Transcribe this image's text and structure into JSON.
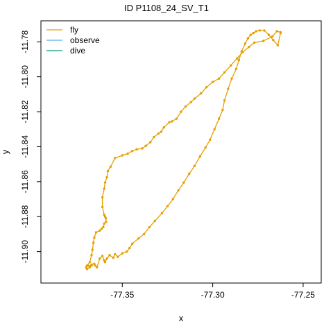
{
  "chart_data": {
    "type": "line",
    "title": "ID P1108_24_SV_T1",
    "xlabel": "x",
    "ylabel": "y",
    "xlim": [
      -77.395,
      -77.24
    ],
    "ylim": [
      -11.918,
      -11.768
    ],
    "xticks": [
      -77.35,
      -77.3,
      -77.25
    ],
    "xtick_labels": [
      "-77.35",
      "-77.30",
      "-77.25"
    ],
    "yticks": [
      -11.78,
      -11.8,
      -11.82,
      -11.84,
      -11.86,
      -11.88,
      -11.9
    ],
    "ytick_labels": [
      "-11.78",
      "-11.80",
      "-11.82",
      "-11.84",
      "-11.86",
      "-11.88",
      "-11.90"
    ],
    "legend_position": "top-left",
    "series": [
      {
        "name": "fly",
        "color": "#E69F00",
        "x": [
          -77.2625,
          -77.2645,
          -77.267,
          -77.272,
          -77.277,
          -77.28,
          -77.2835,
          -77.2865,
          -77.29,
          -77.2935,
          -77.2965,
          -77.3,
          -77.3035,
          -77.3065,
          -77.31,
          -77.312,
          -77.315,
          -77.3175,
          -77.32,
          -77.3225,
          -77.324,
          -77.327,
          -77.3285,
          -77.33,
          -77.3325,
          -77.3345,
          -77.337,
          -77.339,
          -77.342,
          -77.3445,
          -77.347,
          -77.35,
          -77.354,
          -77.3565,
          -77.358,
          -77.3585,
          -77.3595,
          -77.36,
          -77.361,
          -77.361,
          -77.36,
          -77.3595,
          -77.359,
          -77.359,
          -77.36,
          -77.3605,
          -77.3615,
          -77.3625,
          -77.3645,
          -77.3655,
          -77.366,
          -77.3665,
          -77.367,
          -77.368,
          -77.3695,
          -77.37,
          -77.3695,
          -77.368,
          -77.367,
          -77.369,
          -77.368,
          -77.367,
          -77.3655,
          -77.365,
          -77.364,
          -77.3625,
          -77.361,
          -77.36,
          -77.3595,
          -77.3585,
          -77.357,
          -77.355,
          -77.354,
          -77.3525,
          -77.35,
          -77.3475,
          -77.346,
          -77.3445,
          -77.341,
          -77.338,
          -77.335,
          -77.332,
          -77.328,
          -77.325,
          -77.322,
          -77.319,
          -77.316,
          -77.313,
          -77.31,
          -77.307,
          -77.304,
          -77.3015,
          -77.299,
          -77.2965,
          -77.2945,
          -77.2935,
          -77.2915,
          -77.2895,
          -77.287,
          -77.2855,
          -77.284,
          -77.282,
          -77.2805,
          -77.279,
          -77.2775,
          -77.276,
          -77.274,
          -77.2715,
          -77.269,
          -77.2665,
          -77.264,
          -77.2625
        ],
        "y": [
          -11.7745,
          -11.774,
          -11.777,
          -11.7795,
          -11.7805,
          -11.783,
          -11.786,
          -11.7895,
          -11.7935,
          -11.7975,
          -11.801,
          -11.803,
          -11.806,
          -11.8095,
          -11.8125,
          -11.8145,
          -11.817,
          -11.82,
          -11.824,
          -11.8255,
          -11.826,
          -11.829,
          -11.8315,
          -11.8325,
          -11.8345,
          -11.8375,
          -11.8395,
          -11.841,
          -11.8415,
          -11.8425,
          -11.844,
          -11.845,
          -11.8465,
          -11.8515,
          -11.854,
          -11.8575,
          -11.8605,
          -11.864,
          -11.869,
          -11.8745,
          -11.879,
          -11.88,
          -11.881,
          -11.883,
          -11.884,
          -11.886,
          -11.887,
          -11.888,
          -11.889,
          -11.892,
          -11.895,
          -11.899,
          -11.902,
          -11.906,
          -11.908,
          -11.909,
          -11.91,
          -11.909,
          -11.908,
          -11.908,
          -11.9085,
          -11.9075,
          -11.907,
          -11.908,
          -11.909,
          -11.904,
          -11.9025,
          -11.905,
          -11.906,
          -11.904,
          -11.902,
          -11.9035,
          -11.9015,
          -11.903,
          -11.901,
          -11.9,
          -11.898,
          -11.8955,
          -11.8925,
          -11.89,
          -11.886,
          -11.8825,
          -11.878,
          -11.874,
          -11.87,
          -11.865,
          -11.8605,
          -11.8555,
          -11.851,
          -11.8455,
          -11.8405,
          -11.836,
          -11.83,
          -11.824,
          -11.819,
          -11.8135,
          -11.807,
          -11.801,
          -11.7955,
          -11.7905,
          -11.7855,
          -11.781,
          -11.778,
          -11.776,
          -11.775,
          -11.774,
          -11.7735,
          -11.7735,
          -11.776,
          -11.779,
          -11.782,
          -11.775
        ]
      },
      {
        "name": "observe",
        "color": "#56B4E9",
        "x": [],
        "y": []
      },
      {
        "name": "dive",
        "color": "#009E73",
        "x": [],
        "y": []
      }
    ]
  }
}
